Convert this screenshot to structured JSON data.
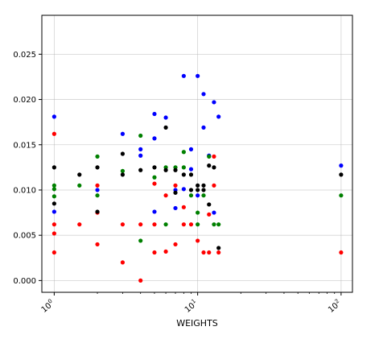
{
  "chart_data": {
    "type": "scatter",
    "title": "",
    "xlabel": "WEIGHTS",
    "ylabel": "",
    "xscale": "log",
    "xlim": [
      0.82,
      120
    ],
    "ylim": [
      -0.0013,
      0.0293
    ],
    "grid": true,
    "yticks": [
      {
        "value": 0.0,
        "label": "0.000"
      },
      {
        "value": 0.005,
        "label": "0.005"
      },
      {
        "value": 0.01,
        "label": "0.010"
      },
      {
        "value": 0.015,
        "label": "0.015"
      },
      {
        "value": 0.02,
        "label": "0.020"
      },
      {
        "value": 0.025,
        "label": "0.025"
      }
    ],
    "xticks": [
      {
        "value": 1,
        "base": "10",
        "exp": "0"
      },
      {
        "value": 10,
        "base": "10",
        "exp": "1"
      },
      {
        "value": 100,
        "base": "10",
        "exp": "2"
      }
    ],
    "series": [
      {
        "color": "#0000ff",
        "points": [
          [
            1,
            0.0181
          ],
          [
            1,
            0.0076
          ],
          [
            2,
            0.01
          ],
          [
            3,
            0.0162
          ],
          [
            4,
            0.0145
          ],
          [
            4,
            0.0138
          ],
          [
            5,
            0.0184
          ],
          [
            5,
            0.0157
          ],
          [
            5,
            0.0076
          ],
          [
            6,
            0.018
          ],
          [
            7,
            0.01
          ],
          [
            7,
            0.008
          ],
          [
            8,
            0.0226
          ],
          [
            8,
            0.0101
          ],
          [
            9,
            0.0145
          ],
          [
            9,
            0.0123
          ],
          [
            10,
            0.0226
          ],
          [
            10,
            0.0094
          ],
          [
            11,
            0.0206
          ],
          [
            11,
            0.0169
          ],
          [
            12,
            0.0138
          ],
          [
            13,
            0.0197
          ],
          [
            13,
            0.0075
          ],
          [
            14,
            0.0181
          ],
          [
            100,
            0.0127
          ]
        ]
      },
      {
        "color": "#ff0000",
        "points": [
          [
            1,
            0.0162
          ],
          [
            1,
            0.0062
          ],
          [
            1,
            0.0052
          ],
          [
            1,
            0.0031
          ],
          [
            1.5,
            0.0062
          ],
          [
            2,
            0.0105
          ],
          [
            2,
            0.0075
          ],
          [
            2,
            0.004
          ],
          [
            3,
            0.0062
          ],
          [
            3,
            0.002
          ],
          [
            4,
            0.0062
          ],
          [
            4,
            0.0
          ],
          [
            5,
            0.0107
          ],
          [
            5,
            0.0062
          ],
          [
            5,
            0.0031
          ],
          [
            6,
            0.0094
          ],
          [
            6,
            0.0032
          ],
          [
            7,
            0.0105
          ],
          [
            7,
            0.004
          ],
          [
            8,
            0.0081
          ],
          [
            8,
            0.0062
          ],
          [
            9,
            0.0062
          ],
          [
            10,
            0.0044
          ],
          [
            11,
            0.0031
          ],
          [
            12,
            0.0031
          ],
          [
            12,
            0.0073
          ],
          [
            13,
            0.0137
          ],
          [
            13,
            0.0105
          ],
          [
            14,
            0.0031
          ],
          [
            100,
            0.0031
          ]
        ]
      },
      {
        "color": "#008000",
        "points": [
          [
            1,
            0.0105
          ],
          [
            1,
            0.0101
          ],
          [
            1,
            0.0093
          ],
          [
            1.5,
            0.0105
          ],
          [
            2,
            0.0137
          ],
          [
            2,
            0.0094
          ],
          [
            3,
            0.0121
          ],
          [
            4,
            0.016
          ],
          [
            4,
            0.0044
          ],
          [
            5,
            0.0114
          ],
          [
            6,
            0.0125
          ],
          [
            6,
            0.0062
          ],
          [
            7,
            0.0125
          ],
          [
            8,
            0.0142
          ],
          [
            8,
            0.0125
          ],
          [
            9,
            0.0094
          ],
          [
            10,
            0.0075
          ],
          [
            10,
            0.0062
          ],
          [
            11,
            0.0094
          ],
          [
            12,
            0.0137
          ],
          [
            13,
            0.0062
          ],
          [
            14,
            0.0062
          ],
          [
            100,
            0.0094
          ]
        ]
      },
      {
        "color": "#000000",
        "points": [
          [
            1,
            0.0125
          ],
          [
            1,
            0.0085
          ],
          [
            1.5,
            0.0117
          ],
          [
            2,
            0.0125
          ],
          [
            2,
            0.0076
          ],
          [
            3,
            0.014
          ],
          [
            3,
            0.0117
          ],
          [
            4,
            0.0122
          ],
          [
            5,
            0.0125
          ],
          [
            6,
            0.0169
          ],
          [
            6,
            0.0122
          ],
          [
            7,
            0.0122
          ],
          [
            7,
            0.0097
          ],
          [
            8,
            0.0117
          ],
          [
            9,
            0.0117
          ],
          [
            9,
            0.01
          ],
          [
            10,
            0.0105
          ],
          [
            10,
            0.01
          ],
          [
            11,
            0.0105
          ],
          [
            11,
            0.01
          ],
          [
            12,
            0.0127
          ],
          [
            12,
            0.0084
          ],
          [
            13,
            0.0125
          ],
          [
            14,
            0.0036
          ],
          [
            100,
            0.0117
          ]
        ]
      }
    ]
  }
}
